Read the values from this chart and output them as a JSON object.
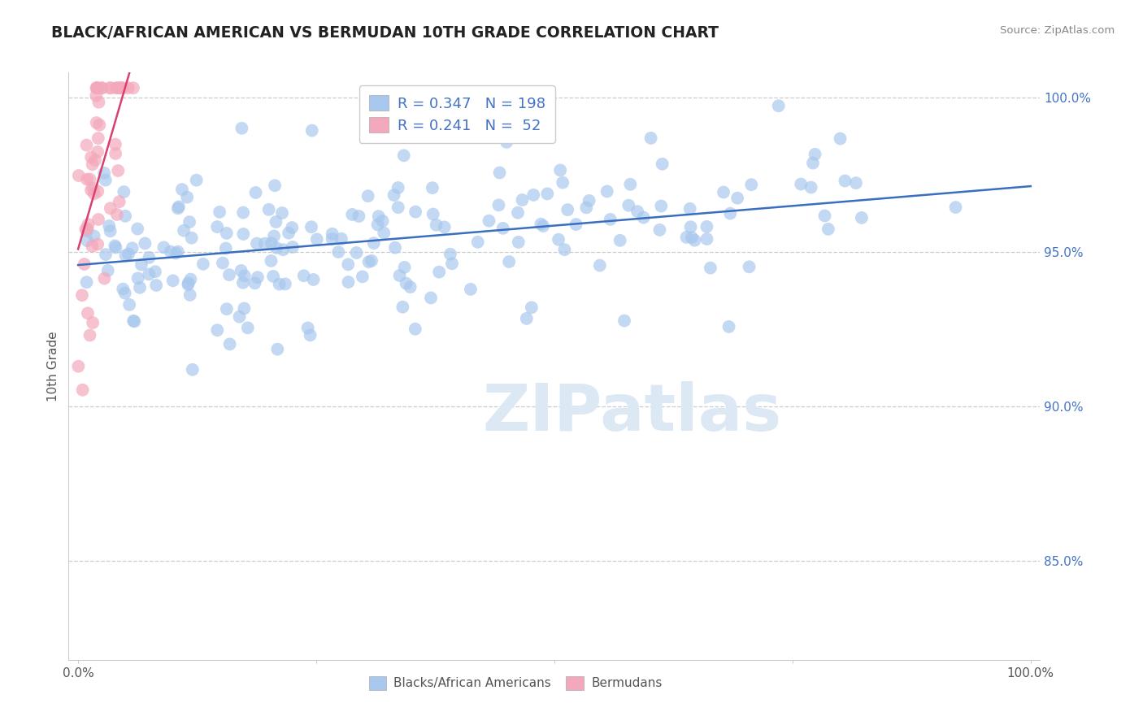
{
  "title": "BLACK/AFRICAN AMERICAN VS BERMUDAN 10TH GRADE CORRELATION CHART",
  "source": "Source: ZipAtlas.com",
  "ylabel": "10th Grade",
  "blue_R": 0.347,
  "blue_N": 198,
  "pink_R": 0.241,
  "pink_N": 52,
  "blue_color": "#a8c8ee",
  "pink_color": "#f4a8bb",
  "blue_line_color": "#3a6fbf",
  "pink_line_color": "#d94070",
  "legend_text_color": "#4472c4",
  "watermark_color": "#dce9f5",
  "background_color": "#ffffff",
  "grid_color": "#cccccc",
  "title_color": "#222222",
  "ytick_color": "#4472c4",
  "seed": 99
}
